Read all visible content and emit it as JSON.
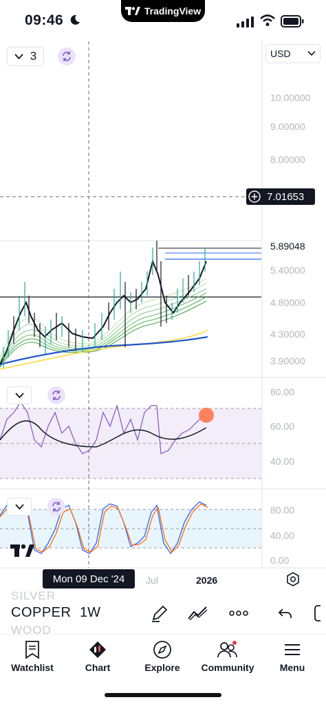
{
  "status_bar": {
    "time": "09:46",
    "notch_brand": "TradingView"
  },
  "chart": {
    "currency": "USD",
    "legend_count": "3",
    "price_axis_labels": [
      "10.00000",
      "9.00000",
      "8.00000",
      "5.40000",
      "4.80000",
      "4.30000",
      "3.90000"
    ],
    "crosshair_price": "7.01653",
    "last_price": "5.89048",
    "crosshair_date": "Mon 09 Dec '24",
    "time_axis_labels": [
      "Jul",
      "2026"
    ],
    "rsi_axis_labels": [
      "80.00",
      "60.00",
      "40.00"
    ],
    "stoch_axis_labels": [
      "80.00",
      "40.00",
      "0.00"
    ],
    "colors": {
      "up": "#26a69a",
      "down": "#000000",
      "rsi": "#7e57c2",
      "stoch_k": "#2962ff",
      "stoch_d": "#ff6d00",
      "accent": "#e9e3fb"
    }
  },
  "symbols": {
    "list": [
      "SILVER",
      "COPPER",
      "WOOD"
    ],
    "current": "COPPER",
    "interval": "1W"
  },
  "nav": {
    "watchlist": "Watchlist",
    "chart": "Chart",
    "explore": "Explore",
    "community": "Community",
    "menu": "Menu"
  }
}
